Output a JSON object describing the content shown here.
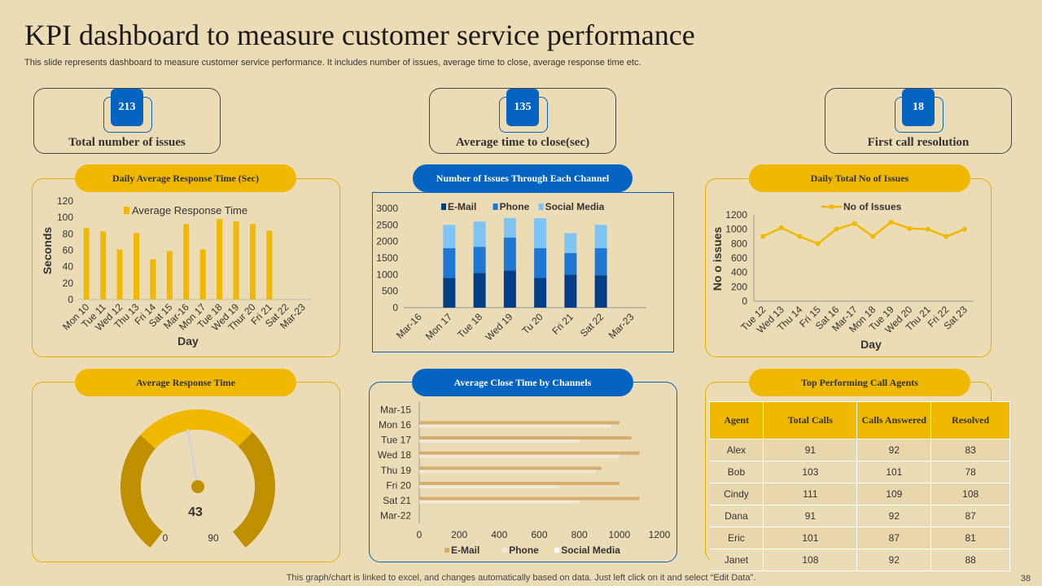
{
  "page": {
    "title": "KPI dashboard to measure customer service performance",
    "subtitle": "This slide represents dashboard to measure customer service performance. It includes number of issues, average time to close, average response time etc.",
    "footer": "This graph/chart is linked to excel,  and changes automatically based on data. Just left click on it and select “Edit Data”.",
    "page_number": "38"
  },
  "kpis": [
    {
      "value": "213",
      "label": "Total number  of issues"
    },
    {
      "value": "135",
      "label": "Average time to close(sec)"
    },
    {
      "value": "18",
      "label": "First call resolution"
    }
  ],
  "panels": {
    "response_time_title": "Daily Average Response Time (Sec)",
    "channel_issues_title": "Number  of Issues Through Each Channel",
    "daily_issues_title": "Daily Total No of Issues",
    "gauge_title": "Average Response Time",
    "close_time_title": "Average Close Time by Channels",
    "agents_title": "Top Performing Call Agents"
  },
  "colors": {
    "gold": "#f0b800",
    "gold_dark": "#bf8f00",
    "blue": "#0563c1",
    "navy": "#003f87",
    "mid_blue": "#1f77d4",
    "light_blue": "#7ec4f5",
    "background": "#ecdcb6"
  },
  "chart_data": [
    {
      "id": "daily_response",
      "type": "bar",
      "title": "Daily Average Response Time (Sec)",
      "categories": [
        "Mon 10",
        "Tue 11",
        "Wed 12",
        "Thu 13",
        "Fri 14",
        "Sat 15",
        "Mar-16",
        "Mon 17",
        "Tue 18",
        "Wed 19",
        "Thur 20",
        "Fri 21",
        "Sat 22",
        "Mar-23"
      ],
      "series": [
        {
          "name": "Average Response Time",
          "values": [
            87,
            83,
            61,
            81,
            49,
            59,
            92,
            61,
            98,
            95,
            92,
            84,
            null,
            null
          ]
        }
      ],
      "xlabel": "Day",
      "ylabel": "Seconds",
      "yticks": [
        "0",
        "20",
        "40",
        "60",
        "80",
        "100",
        "120"
      ],
      "ylim": [
        0,
        120
      ]
    },
    {
      "id": "channel_issues",
      "type": "bar",
      "stacked": true,
      "title": "Number  of Issues Through Each Channel",
      "categories": [
        "Mar-16",
        "Mon 17",
        "Tue 18",
        "Wed 19",
        "Tu 20",
        "Fri 21",
        "Sat 22",
        "Mar-23"
      ],
      "series": [
        {
          "name": "E-Mail",
          "values": [
            null,
            900,
            1050,
            1120,
            900,
            1000,
            980,
            null
          ]
        },
        {
          "name": "Phone",
          "values": [
            null,
            900,
            790,
            1000,
            900,
            650,
            820,
            null
          ]
        },
        {
          "name": "Social Media",
          "values": [
            null,
            700,
            760,
            590,
            900,
            600,
            700,
            null
          ]
        }
      ],
      "yticks": [
        "0",
        "500",
        "1000",
        "1500",
        "2000",
        "2500",
        "3000"
      ],
      "ylim": [
        0,
        3000
      ]
    },
    {
      "id": "daily_issues",
      "type": "line",
      "title": "Daily Total No of Issues",
      "categories": [
        "Tue 12",
        "Wed 13",
        "Thu 14",
        "Fri 15",
        "Sat 16",
        "Mar-17",
        "Mon 18",
        "Tue 19",
        "Wed 20",
        "Thu 21",
        "Fri 22",
        "Sat 23"
      ],
      "series": [
        {
          "name": "No of Issues",
          "values": [
            900,
            1020,
            900,
            800,
            1000,
            1080,
            900,
            1100,
            1010,
            1000,
            900,
            1000
          ]
        }
      ],
      "xlabel": "Day",
      "ylabel": "No o issues",
      "yticks": [
        "0",
        "200",
        "400",
        "600",
        "800",
        "1000",
        "1200"
      ],
      "ylim": [
        0,
        1200
      ]
    },
    {
      "id": "gauge",
      "type": "gauge",
      "title": "Average Response Time",
      "value": 43,
      "value_label": "43",
      "min": 0,
      "max": 90,
      "min_label": "0",
      "max_label": "90"
    },
    {
      "id": "close_time",
      "type": "bar",
      "orientation": "horizontal",
      "title": "Average Close Time by Channels",
      "categories": [
        "Mar-15",
        "Mon 16",
        "Tue 17",
        "Wed 18",
        "Thu 19",
        "Fri 20",
        "Sat 21",
        "Mar-22"
      ],
      "series": [
        {
          "name": "E-Mail",
          "values": [
            null,
            1000,
            1060,
            1100,
            910,
            1000,
            1100,
            null
          ]
        },
        {
          "name": "Phone",
          "values": [
            null,
            960,
            800,
            1000,
            880,
            700,
            800,
            null
          ]
        },
        {
          "name": "Social Media",
          "values": [
            null,
            null,
            null,
            null,
            null,
            null,
            null,
            null
          ]
        }
      ],
      "xticks": [
        "0",
        "200",
        "400",
        "600",
        "800",
        "1000",
        "1200"
      ],
      "xlim": [
        0,
        1200
      ]
    }
  ],
  "agents_table": {
    "headers": [
      "Agent",
      "Total  Calls",
      "Calls Answered",
      "Resolved"
    ],
    "rows": [
      [
        "Alex",
        "91",
        "92",
        "83"
      ],
      [
        "Bob",
        "103",
        "101",
        "78"
      ],
      [
        "Cindy",
        "111",
        "109",
        "108"
      ],
      [
        "Dana",
        "91",
        "92",
        "87"
      ],
      [
        "Eric",
        "101",
        "87",
        "81"
      ],
      [
        "Janet",
        "108",
        "92",
        "88"
      ]
    ]
  }
}
